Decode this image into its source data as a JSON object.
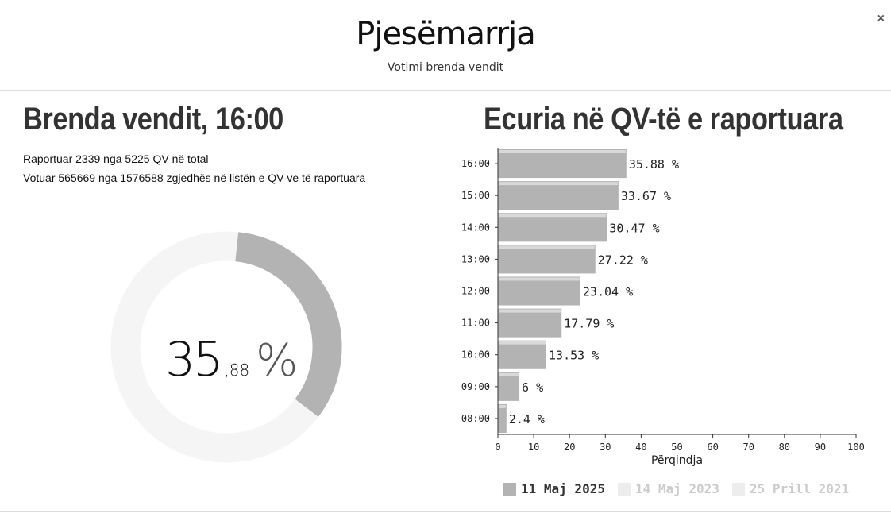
{
  "window": {
    "close_label": "×"
  },
  "header": {
    "title": "Pjesëmarrja",
    "subtitle": "Votimi brenda vendit"
  },
  "left": {
    "title": "Brenda vendit, 16:00",
    "info1": "Raportuar 2339 nga 5225 QV në total",
    "info2": "Votuar 565669 nga 1576588 zgjedhës në listën e QV-ve të raportuara",
    "percent": {
      "int": "35",
      "dec": ",88",
      "sign": "%"
    },
    "donut_value": 35.88
  },
  "right": {
    "title": "Ecuria në QV-të e raportuara"
  },
  "colors": {
    "bar": "#b3b3b3",
    "bar_highlight": "#d9d9d9",
    "donut_filled": "#b3b3b3",
    "donut_empty": "#f5f5f5",
    "legend_active": "#b3b3b3",
    "legend_inactive": "#ededed"
  },
  "chart_data": {
    "type": "bar",
    "orientation": "horizontal",
    "categories": [
      "16:00",
      "15:00",
      "14:00",
      "13:00",
      "12:00",
      "11:00",
      "10:00",
      "09:00",
      "08:00"
    ],
    "series": [
      {
        "name": "11 Maj 2025",
        "values": [
          35.88,
          33.67,
          30.47,
          27.22,
          23.04,
          17.79,
          13.53,
          6,
          2.4
        ],
        "active": true
      }
    ],
    "data_labels": [
      "35.88 %",
      "33.67 %",
      "30.47 %",
      "27.22 %",
      "23.04 %",
      "17.79 %",
      "13.53 %",
      "6 %",
      "2.4 %"
    ],
    "xlabel": "Përqindja",
    "xlim": [
      0,
      100
    ],
    "xticks": [
      0,
      10,
      20,
      30,
      40,
      50,
      60,
      70,
      80,
      90,
      100
    ],
    "legend_position": "bottom",
    "legend": [
      {
        "name": "11 Maj 2025",
        "active": true
      },
      {
        "name": "14 Maj 2023",
        "active": false
      },
      {
        "name": "25 Prill 2021",
        "active": false
      }
    ]
  }
}
